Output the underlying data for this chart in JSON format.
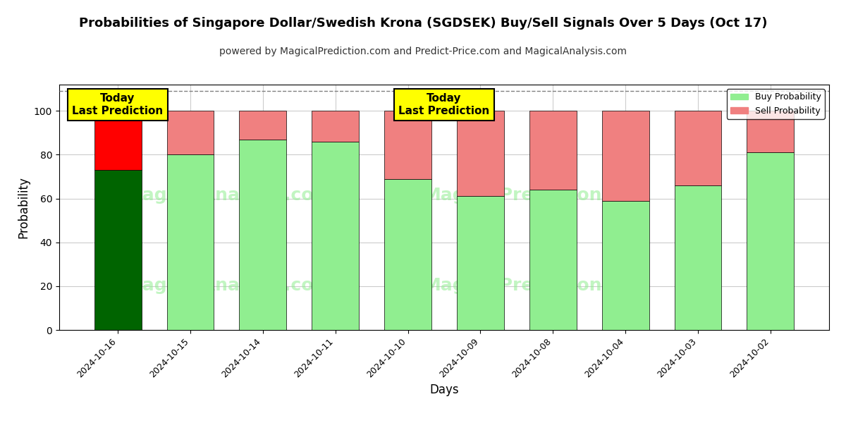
{
  "title": "Probabilities of Singapore Dollar/Swedish Krona (SGDSEK) Buy/Sell Signals Over 5 Days (Oct 17)",
  "subtitle": "powered by MagicalPrediction.com and Predict-Price.com and MagicalAnalysis.com",
  "xlabel": "Days",
  "ylabel": "Probability",
  "categories": [
    "2024-10-16",
    "2024-10-15",
    "2024-10-14",
    "2024-10-11",
    "2024-10-10",
    "2024-10-09",
    "2024-10-08",
    "2024-10-04",
    "2024-10-03",
    "2024-10-02"
  ],
  "buy_values": [
    73,
    80,
    87,
    86,
    69,
    61,
    64,
    59,
    66,
    81
  ],
  "sell_values": [
    27,
    20,
    13,
    14,
    31,
    39,
    36,
    41,
    34,
    19
  ],
  "today_buy_color": "#006400",
  "today_sell_color": "#ff0000",
  "buy_color": "#90EE90",
  "sell_color": "#F08080",
  "today_label_bg": "#ffff00",
  "today_label_text": "Today\nLast Prediction",
  "legend_buy": "Buy Probability",
  "legend_sell": "Sell Probability",
  "ylim": [
    0,
    112
  ],
  "yticks": [
    0,
    20,
    40,
    60,
    80,
    100
  ],
  "dashed_line_y": 109,
  "background_color": "#ffffff",
  "grid_color": "#cccccc"
}
